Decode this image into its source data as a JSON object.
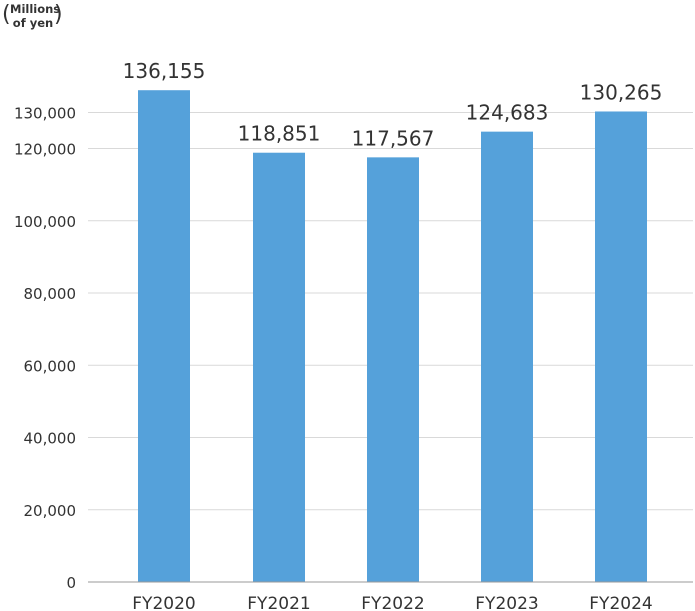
{
  "chart_data": {
    "type": "bar",
    "unit_label": {
      "line1": "Millions",
      "line2": "of yen"
    },
    "categories": [
      "FY2020",
      "FY2021",
      "FY2022",
      "FY2023",
      "FY2024"
    ],
    "values": [
      136155,
      118851,
      117567,
      124683,
      130265
    ],
    "value_labels": [
      "136,155",
      "118,851",
      "117,567",
      "124,683",
      "130,265"
    ],
    "ylim": [
      0,
      140000
    ],
    "yticks": [
      0,
      20000,
      40000,
      60000,
      80000,
      100000,
      120000,
      130000
    ],
    "ytick_labels": [
      "0",
      "20,000",
      "40,000",
      "60,000",
      "80,000",
      "100,000",
      "120,000",
      "130,000"
    ],
    "grid": true,
    "colors": {
      "bar": "#55a1da",
      "grid": "#d9d9d9",
      "axis": "#999999",
      "text": "#333333"
    }
  }
}
